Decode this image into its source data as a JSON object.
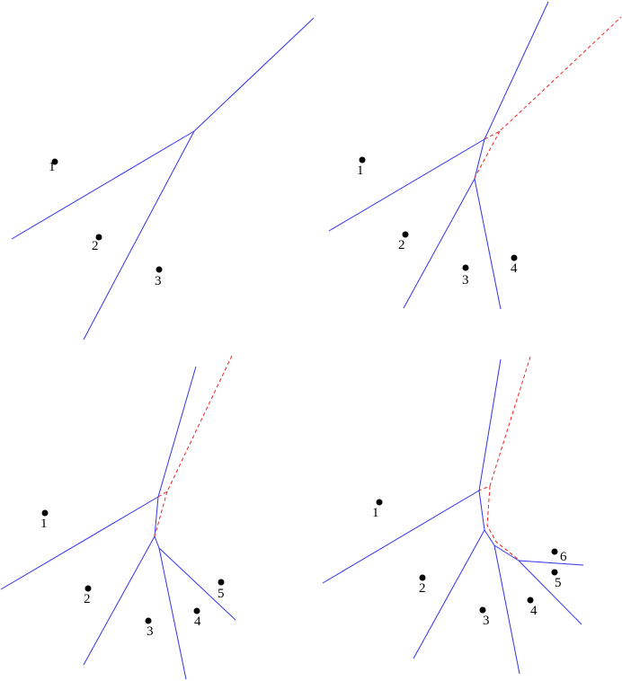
{
  "colors": {
    "edge": "#3333ee",
    "new_edge_dashed": "#ee2222",
    "site": "#000000"
  },
  "panels": [
    {
      "site_labels": [
        "1",
        "2",
        "3"
      ]
    },
    {
      "site_labels": [
        "1",
        "2",
        "3",
        "4"
      ]
    },
    {
      "site_labels": [
        "1",
        "2",
        "3",
        "4",
        "5"
      ]
    },
    {
      "site_labels": [
        "1",
        "2",
        "3",
        "4",
        "5",
        "6"
      ]
    }
  ]
}
